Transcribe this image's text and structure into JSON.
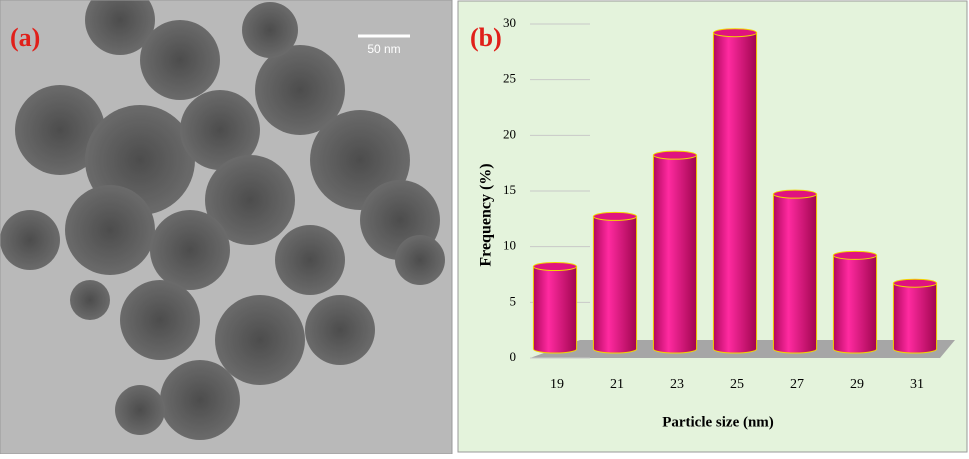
{
  "labels": {
    "a": "(a)",
    "b": "(b)",
    "scale_bar": "50 nm"
  },
  "chart_data": {
    "type": "bar",
    "xlabel": "Particle size (nm)",
    "ylabel": "Frequency  (%)",
    "categories": [
      "19",
      "21",
      "23",
      "25",
      "27",
      "29",
      "31"
    ],
    "values": [
      7.5,
      12,
      17.5,
      28.5,
      14,
      8.5,
      6
    ],
    "color": "#e0137f",
    "ylim": [
      0,
      30
    ],
    "yticks": [
      0,
      5,
      10,
      15,
      20,
      25,
      30
    ],
    "grid": true
  }
}
